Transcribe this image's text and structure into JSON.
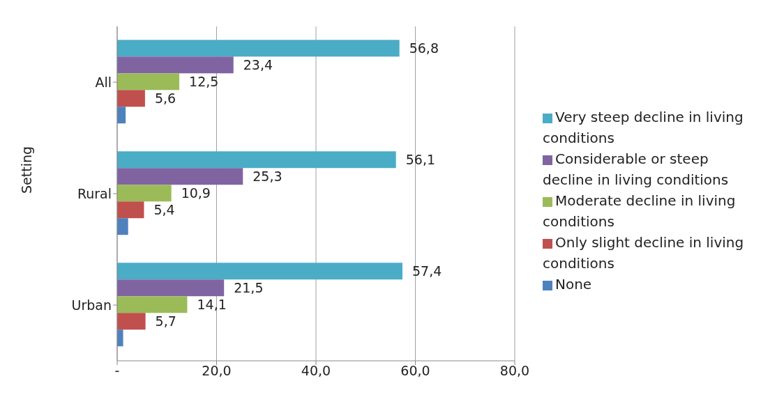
{
  "chart_data": {
    "type": "bar",
    "orientation": "horizontal",
    "ylabel": "Setting",
    "categories": [
      "All",
      "Rural",
      "Urban"
    ],
    "series": [
      {
        "name": "Very steep decline in living conditions",
        "color": "#4bacc6",
        "values": [
          56.8,
          56.1,
          57.4
        ],
        "value_labels": [
          "56,8",
          "56,1",
          "57,4"
        ]
      },
      {
        "name": "Considerable or steep decline in living conditions",
        "color": "#8064a2",
        "values": [
          23.4,
          25.3,
          21.5
        ],
        "value_labels": [
          "23,4",
          "25,3",
          "21,5"
        ]
      },
      {
        "name": "Moderate decline in living conditions",
        "color": "#9bbb59",
        "values": [
          12.5,
          10.9,
          14.1
        ],
        "value_labels": [
          "12,5",
          "10,9",
          "14,1"
        ]
      },
      {
        "name": "Only slight decline in living conditions",
        "color": "#c0504d",
        "values": [
          5.6,
          5.4,
          5.7
        ],
        "value_labels": [
          "5,6",
          "5,4",
          "5,7"
        ]
      },
      {
        "name": "None",
        "color": "#4f81bd",
        "values": [
          1.7,
          2.2,
          1.2
        ],
        "value_labels": [
          null,
          null,
          null
        ]
      }
    ],
    "xlim": [
      0,
      80
    ],
    "xticks": [
      {
        "value": 0,
        "label": "-"
      },
      {
        "value": 20,
        "label": "20,0"
      },
      {
        "value": 40,
        "label": "40,0"
      },
      {
        "value": 60,
        "label": "60,0"
      },
      {
        "value": 80,
        "label": "80,0"
      }
    ],
    "grid": "x",
    "legend": "right"
  }
}
